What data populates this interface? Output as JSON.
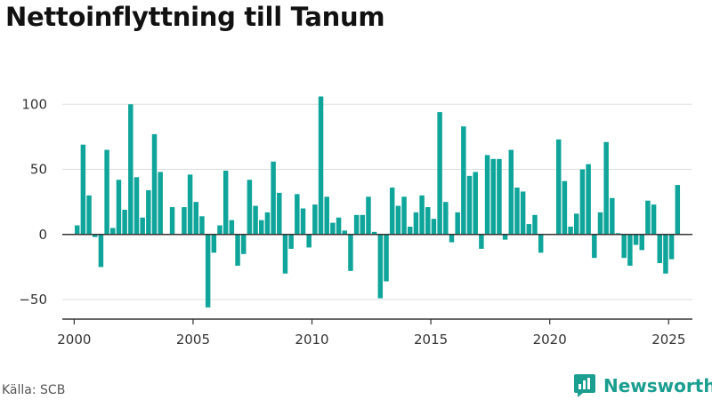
{
  "title": "Nettoinflyttning till Tanum",
  "source": "Källa: SCB",
  "brand": {
    "label": "Newsworthy"
  },
  "colors": {
    "bar": "#0fa59a",
    "grid": "#dddddd",
    "axis": "#333333"
  },
  "chart_data": {
    "type": "bar",
    "title": "Nettoinflyttning till Tanum",
    "xlabel": "",
    "ylabel": "",
    "grid": true,
    "ylim": [
      -65,
      120
    ],
    "xlim": [
      1999.5,
      2026.0
    ],
    "yticks": [
      {
        "value": -50,
        "label": "−50"
      },
      {
        "value": 0,
        "label": "0"
      },
      {
        "value": 50,
        "label": "50"
      },
      {
        "value": 100,
        "label": "100"
      }
    ],
    "xticks": [
      2000,
      2005,
      2010,
      2015,
      2020,
      2025
    ],
    "x": [
      2000.125,
      2000.375,
      2000.625,
      2000.875,
      2001.125,
      2001.375,
      2001.625,
      2001.875,
      2002.125,
      2002.375,
      2002.625,
      2002.875,
      2003.125,
      2003.375,
      2003.625,
      2003.875,
      2004.125,
      2004.375,
      2004.625,
      2004.875,
      2005.125,
      2005.375,
      2005.625,
      2005.875,
      2006.125,
      2006.375,
      2006.625,
      2006.875,
      2007.125,
      2007.375,
      2007.625,
      2007.875,
      2008.125,
      2008.375,
      2008.625,
      2008.875,
      2009.125,
      2009.375,
      2009.625,
      2009.875,
      2010.125,
      2010.375,
      2010.625,
      2010.875,
      2011.125,
      2011.375,
      2011.625,
      2011.875,
      2012.125,
      2012.375,
      2012.625,
      2012.875,
      2013.125,
      2013.375,
      2013.625,
      2013.875,
      2014.125,
      2014.375,
      2014.625,
      2014.875,
      2015.125,
      2015.375,
      2015.625,
      2015.875,
      2016.125,
      2016.375,
      2016.625,
      2016.875,
      2017.125,
      2017.375,
      2017.625,
      2017.875,
      2018.125,
      2018.375,
      2018.625,
      2018.875,
      2019.125,
      2019.375,
      2019.625,
      2019.875,
      2020.125,
      2020.375,
      2020.625,
      2020.875,
      2021.125,
      2021.375,
      2021.625,
      2021.875,
      2022.125,
      2022.375,
      2022.625,
      2022.875,
      2023.125,
      2023.375,
      2023.625,
      2023.875,
      2024.125,
      2024.375,
      2024.625,
      2024.875,
      2025.125,
      2025.375
    ],
    "values": [
      7,
      69,
      30,
      -2,
      -25,
      65,
      5,
      42,
      19,
      100,
      44,
      13,
      34,
      77,
      48,
      0,
      21,
      0,
      21,
      46,
      25,
      14,
      -56,
      -14,
      7,
      49,
      11,
      -24,
      -15,
      42,
      22,
      11,
      17,
      56,
      32,
      -30,
      -11,
      31,
      20,
      -10,
      23,
      106,
      29,
      9,
      13,
      3,
      -28,
      15,
      15,
      29,
      2,
      -49,
      -36,
      36,
      22,
      29,
      6,
      17,
      30,
      21,
      12,
      94,
      25,
      -6,
      17,
      83,
      45,
      48,
      -11,
      61,
      58,
      58,
      -4,
      65,
      36,
      33,
      8,
      15,
      -14,
      0,
      0,
      73,
      41,
      6,
      16,
      50,
      54,
      -18,
      17,
      71,
      28,
      1,
      -18,
      -24,
      -8,
      -12,
      26,
      23,
      -22,
      -30,
      -19,
      38
    ]
  }
}
